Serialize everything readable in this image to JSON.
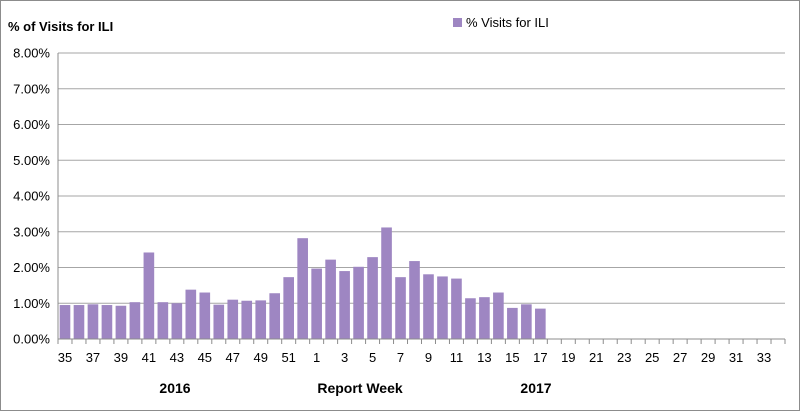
{
  "chart_data": {
    "type": "bar",
    "ylabel": "% of Visits for ILI",
    "xlabel": "Report Week",
    "year_labels": [
      "2016",
      "2017"
    ],
    "legend": {
      "label": "% Visits for ILI",
      "position": "top-right"
    },
    "ylim": [
      0,
      8
    ],
    "y_ticks": [
      "0.00%",
      "1.00%",
      "2.00%",
      "3.00%",
      "4.00%",
      "5.00%",
      "6.00%",
      "7.00%",
      "8.00%"
    ],
    "grid": true,
    "colors": {
      "bar": "#9e86c2",
      "grid": "#a6a6a6",
      "axis": "#8c8c8c"
    },
    "categories": [
      "35",
      "36",
      "37",
      "38",
      "39",
      "40",
      "41",
      "42",
      "43",
      "44",
      "45",
      "46",
      "47",
      "48",
      "49",
      "50",
      "51",
      "52",
      "1",
      "2",
      "3",
      "4",
      "5",
      "6",
      "7",
      "8",
      "9",
      "10",
      "11",
      "12",
      "13",
      "14",
      "15",
      "16",
      "17",
      "18",
      "19",
      "20",
      "21",
      "22",
      "23",
      "24",
      "25",
      "26",
      "27",
      "28",
      "29",
      "30",
      "31",
      "32",
      "33",
      "34"
    ],
    "x_tick_labels": [
      "35",
      "37",
      "39",
      "41",
      "43",
      "45",
      "47",
      "49",
      "51",
      "1",
      "3",
      "5",
      "7",
      "9",
      "11",
      "13",
      "15",
      "17",
      "19",
      "21",
      "23",
      "25",
      "27",
      "29",
      "31",
      "33"
    ],
    "series": [
      {
        "name": "% Visits for ILI",
        "values": [
          0.95,
          0.95,
          0.97,
          0.95,
          0.93,
          1.03,
          2.42,
          1.03,
          1.0,
          1.38,
          1.3,
          0.96,
          1.1,
          1.07,
          1.08,
          1.28,
          1.73,
          2.82,
          1.97,
          2.22,
          1.9,
          2.02,
          2.29,
          3.12,
          1.73,
          2.18,
          1.81,
          1.75,
          1.69,
          1.14,
          1.17,
          1.3,
          0.87,
          0.97,
          0.85,
          null,
          null,
          null,
          null,
          null,
          null,
          null,
          null,
          null,
          null,
          null,
          null,
          null,
          null,
          null,
          null,
          null
        ]
      }
    ]
  }
}
